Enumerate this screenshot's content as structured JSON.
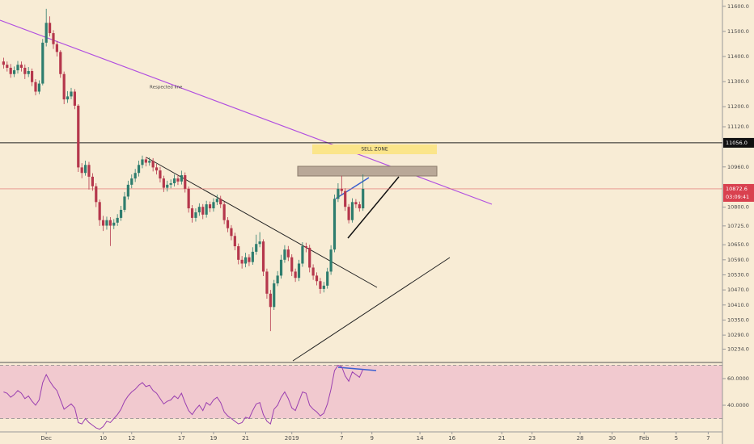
{
  "chart_data": {
    "type": "candlestick",
    "annotations": [
      "Respected line",
      "SELL ZONE"
    ],
    "open": [
      11380,
      11367,
      11355,
      11330,
      11345,
      11367,
      11355,
      11330,
      11342,
      11298,
      11260,
      11292,
      11455,
      11534,
      11493,
      11449,
      11418,
      11330,
      11229,
      11241,
      11260,
      11204,
      10958,
      10936,
      10968,
      10921,
      10883,
      10820,
      10748,
      10726,
      10748,
      10726,
      10738,
      10757,
      10789,
      10842,
      10889,
      10914,
      10936,
      10968,
      10990,
      10977,
      10984,
      10958,
      10946,
      10914,
      10877,
      10889,
      10895,
      10914,
      10902,
      10927,
      10873,
      10795,
      10757,
      10779,
      10801,
      10770,
      10811,
      10795,
      10820,
      10833,
      10811,
      10748,
      10716,
      10685,
      10644,
      10590,
      10575,
      10600,
      10581,
      10622,
      10653,
      10663,
      10543,
      10455,
      10402,
      10496,
      10527,
      10590,
      10631,
      10600,
      10543,
      10518,
      10575,
      10644,
      10638,
      10559,
      10527,
      10505,
      10474,
      10487,
      10543,
      10631,
      10833,
      10873,
      10864,
      10801,
      10748,
      10820,
      10811,
      10795
    ],
    "high": [
      11395,
      11380,
      11370,
      11360,
      11382,
      11380,
      11368,
      11358,
      11352,
      11310,
      11305,
      11470,
      11590,
      11560,
      11505,
      11462,
      11425,
      11340,
      11262,
      11275,
      11270,
      11210,
      10975,
      10985,
      10980,
      10935,
      10895,
      10830,
      10765,
      10762,
      10760,
      10752,
      10772,
      10805,
      10860,
      10905,
      10930,
      10952,
      10985,
      11005,
      11000,
      10998,
      10995,
      10972,
      10960,
      10925,
      10905,
      10910,
      10930,
      10928,
      10945,
      10938,
      10882,
      10808,
      10795,
      10815,
      10812,
      10825,
      10822,
      10835,
      10850,
      10845,
      10822,
      10760,
      10728,
      10698,
      10655,
      10605,
      10618,
      10612,
      10640,
      10690,
      10700,
      10672,
      10555,
      10470,
      10510,
      10545,
      10610,
      10648,
      10645,
      10612,
      10555,
      10590,
      10660,
      10658,
      10650,
      10572,
      10540,
      10518,
      10502,
      10558,
      10648,
      10850,
      10895,
      10925,
      10875,
      10812,
      10835,
      10832,
      10822,
      10930
    ],
    "low": [
      11352,
      11340,
      11315,
      11318,
      11332,
      11340,
      11310,
      11318,
      11282,
      11245,
      11250,
      11285,
      11440,
      11480,
      11430,
      11400,
      11315,
      11210,
      11215,
      11230,
      11190,
      10940,
      10915,
      10925,
      10870,
      10865,
      10800,
      10725,
      10705,
      10710,
      10645,
      10712,
      10725,
      10745,
      10780,
      10830,
      10875,
      10900,
      10922,
      10955,
      10962,
      10965,
      10942,
      10930,
      10898,
      10860,
      10862,
      10875,
      10882,
      10888,
      10890,
      10858,
      10778,
      10738,
      10742,
      10765,
      10752,
      10758,
      10780,
      10782,
      10808,
      10796,
      10732,
      10700,
      10668,
      10628,
      10572,
      10555,
      10560,
      10565,
      10570,
      10610,
      10640,
      10525,
      10435,
      10306,
      10390,
      10485,
      10515,
      10578,
      10585,
      10525,
      10502,
      10505,
      10562,
      10620,
      10540,
      10510,
      10488,
      10455,
      10460,
      10475,
      10530,
      10620,
      10820,
      10850,
      10785,
      10735,
      10738,
      10796,
      10782,
      10785
    ],
    "close": [
      11367,
      11355,
      11330,
      11345,
      11367,
      11355,
      11330,
      11342,
      11298,
      11260,
      11292,
      11455,
      11534,
      11493,
      11449,
      11418,
      11330,
      11229,
      11241,
      11260,
      11204,
      10958,
      10936,
      10968,
      10921,
      10883,
      10820,
      10748,
      10726,
      10748,
      10726,
      10738,
      10757,
      10789,
      10842,
      10889,
      10914,
      10936,
      10968,
      10990,
      10977,
      10984,
      10958,
      10946,
      10914,
      10877,
      10889,
      10895,
      10914,
      10902,
      10927,
      10873,
      10795,
      10757,
      10779,
      10801,
      10770,
      10811,
      10795,
      10820,
      10833,
      10811,
      10748,
      10716,
      10685,
      10644,
      10590,
      10575,
      10600,
      10581,
      10622,
      10653,
      10663,
      10543,
      10455,
      10402,
      10496,
      10527,
      10590,
      10631,
      10600,
      10543,
      10518,
      10575,
      10644,
      10638,
      10559,
      10527,
      10505,
      10474,
      10487,
      10543,
      10631,
      10833,
      10873,
      10864,
      10801,
      10748,
      10820,
      10811,
      10795,
      10872.6
    ],
    "up_color": "#2e7d6e",
    "down_color": "#b5374c",
    "rsi": [
      50,
      49,
      46,
      48,
      51,
      49,
      45,
      47,
      43,
      40,
      44,
      57,
      63,
      58,
      54,
      51,
      44,
      37,
      39,
      41,
      38,
      27,
      26,
      30,
      27,
      25,
      23,
      22,
      24,
      28,
      27,
      30,
      33,
      37,
      43,
      47,
      50,
      52,
      55,
      57,
      54,
      55,
      51,
      49,
      45,
      41,
      43,
      44,
      47,
      45,
      49,
      42,
      36,
      33,
      37,
      40,
      36,
      42,
      40,
      44,
      46,
      42,
      35,
      32,
      30,
      28,
      26,
      27,
      31,
      30,
      36,
      41,
      42,
      33,
      28,
      26,
      37,
      40,
      46,
      50,
      45,
      38,
      36,
      43,
      50,
      49,
      40,
      37,
      35,
      32,
      34,
      41,
      52,
      66,
      70,
      69,
      62,
      58,
      65,
      63,
      61,
      67
    ],
    "rsi_color": "#9a3fb0",
    "rsi_levels": [
      30,
      70
    ],
    "xlim": [
      0,
      203
    ],
    "ylim": [
      10181,
      11625
    ],
    "y2lim": [
      20,
      71.5
    ],
    "xticks": [
      {
        "value": 13,
        "label": "Dec"
      },
      {
        "value": 29,
        "label": "10"
      },
      {
        "value": 37,
        "label": "12"
      },
      {
        "value": 51,
        "label": "17"
      },
      {
        "value": 60,
        "label": "19"
      },
      {
        "value": 69,
        "label": "21"
      },
      {
        "value": 82,
        "label": "2019"
      },
      {
        "value": 96,
        "label": "7"
      },
      {
        "value": 104.5,
        "label": "9"
      },
      {
        "value": 118,
        "label": "14"
      },
      {
        "value": 127,
        "label": "16"
      },
      {
        "value": 141,
        "label": "21"
      },
      {
        "value": 149.5,
        "label": "23"
      },
      {
        "value": 163,
        "label": "28"
      },
      {
        "value": 172,
        "label": "30"
      },
      {
        "value": 181,
        "label": "Feb"
      },
      {
        "value": 190,
        "label": "5"
      },
      {
        "value": 199,
        "label": "7"
      }
    ],
    "yticks": [
      {
        "value": 11600,
        "label": "11600.0"
      },
      {
        "value": 11500,
        "label": "11500.0"
      },
      {
        "value": 11400,
        "label": "11400.0"
      },
      {
        "value": 11300,
        "label": "11300.0"
      },
      {
        "value": 11200,
        "label": "11200.0"
      },
      {
        "value": 11120,
        "label": "11120.0"
      },
      {
        "value": 10960,
        "label": "10960.0"
      },
      {
        "value": 10800,
        "label": "10800.0"
      },
      {
        "value": 10725,
        "label": "10725.0"
      },
      {
        "value": 10650,
        "label": "10650.0"
      },
      {
        "value": 10590,
        "label": "10590.0"
      },
      {
        "value": 10530,
        "label": "10530.0"
      },
      {
        "value": 10470,
        "label": "10470.0"
      },
      {
        "value": 10410,
        "label": "10410.0"
      },
      {
        "value": 10350,
        "label": "10350.0"
      },
      {
        "value": 10290,
        "label": "10290.0"
      },
      {
        "value": 10234,
        "label": "10234.0"
      }
    ],
    "y2ticks": [
      {
        "value": 60,
        "label": "60.0000"
      },
      {
        "value": 40,
        "label": "40.0000"
      }
    ],
    "price_line": {
      "value": 11056,
      "label": "11056.0"
    },
    "last_price": {
      "value": 10872.6,
      "label": "10872.6",
      "countdown": "03:09:41"
    }
  }
}
